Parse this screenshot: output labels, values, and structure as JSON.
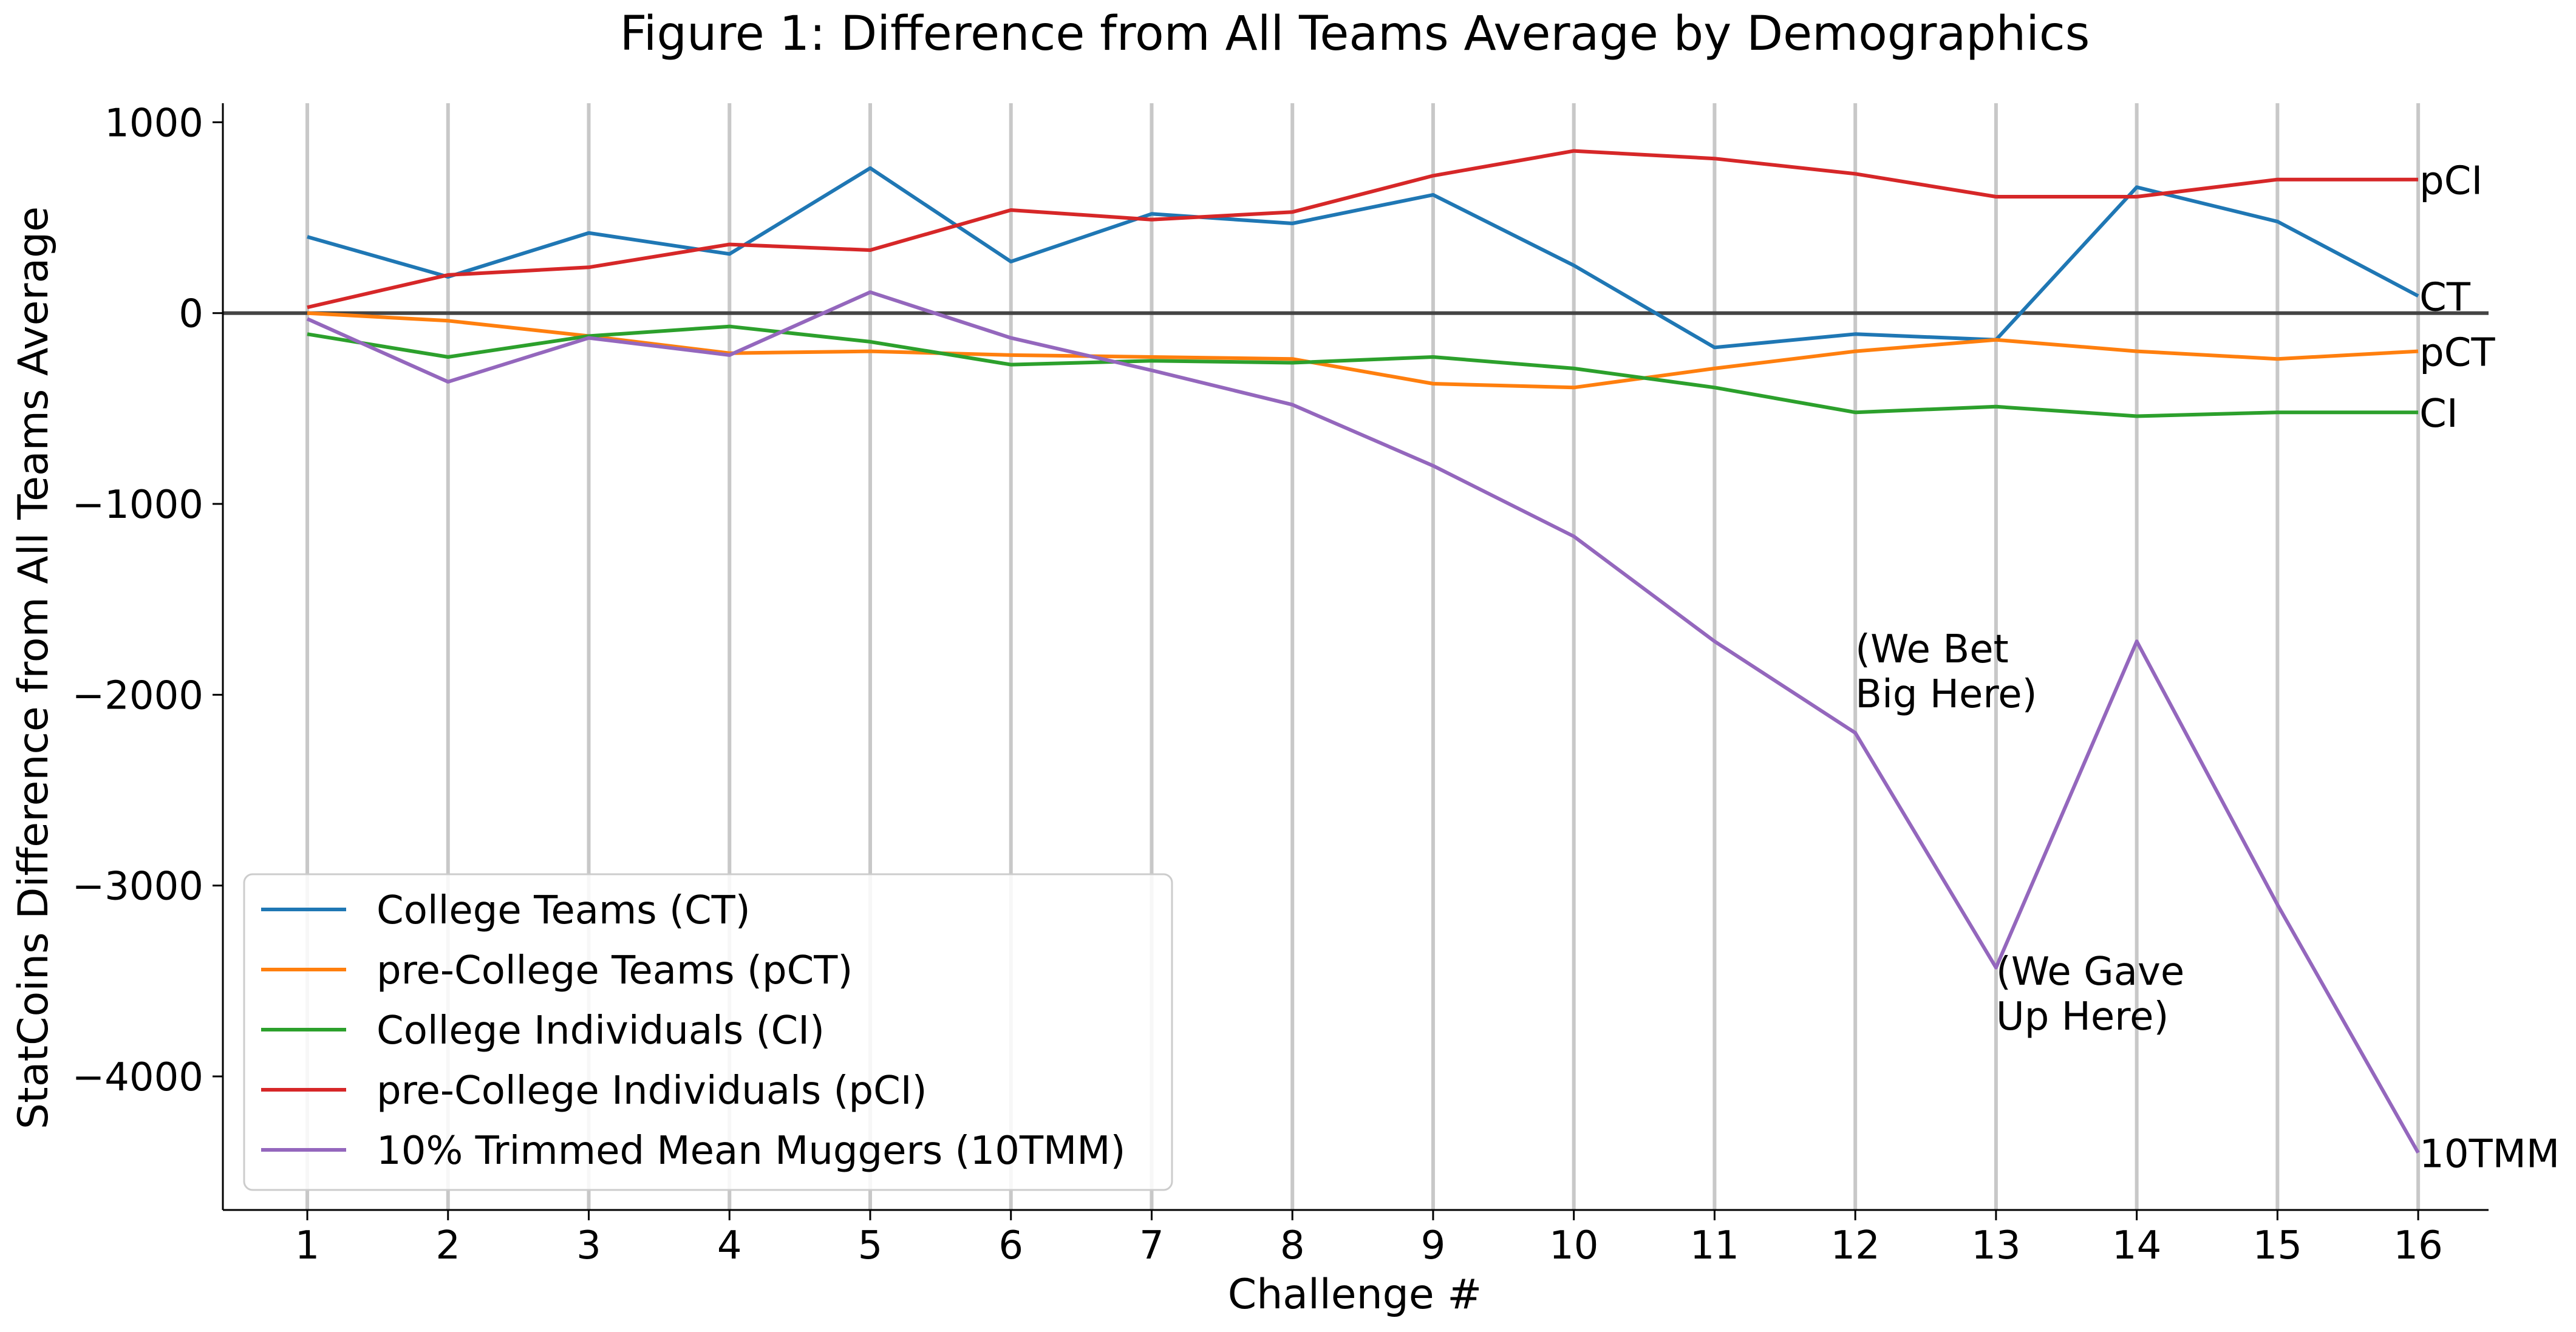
{
  "chart_data": {
    "type": "line",
    "title": "Figure 1: Difference from All Teams Average by Demographics",
    "xlabel": "Challenge #",
    "ylabel": "StatCoins Difference from All Teams Average",
    "x": [
      1,
      2,
      3,
      4,
      5,
      6,
      7,
      8,
      9,
      10,
      11,
      12,
      13,
      14,
      15,
      16
    ],
    "xlim": [
      0.4,
      16.5
    ],
    "ylim": [
      -4700,
      1100
    ],
    "yticks": [
      1000,
      0,
      -1000,
      -2000,
      -3000,
      -4000
    ],
    "ytick_labels": [
      "1000",
      "0",
      "−1000",
      "−2000",
      "−3000",
      "−4000"
    ],
    "vertical_grid": true,
    "horizontal_grid": false,
    "zero_line": {
      "y": 0,
      "color": "#444444"
    },
    "legend_position": "lower-left",
    "series": [
      {
        "name": "College Teams (CT)",
        "end_label": "CT",
        "color": "#1f77b4",
        "values": [
          400,
          190,
          420,
          310,
          760,
          270,
          520,
          470,
          620,
          250,
          -180,
          -110,
          -140,
          660,
          480,
          90
        ]
      },
      {
        "name": "pre-College Teams (pCT)",
        "end_label": "pCT",
        "color": "#ff7f0e",
        "values": [
          0,
          -40,
          -120,
          -210,
          -200,
          -220,
          -230,
          -240,
          -370,
          -390,
          -290,
          -200,
          -140,
          -200,
          -240,
          -200
        ]
      },
      {
        "name": "College Individuals (CI)",
        "end_label": "CI",
        "color": "#2ca02c",
        "values": [
          -110,
          -230,
          -120,
          -70,
          -150,
          -270,
          -250,
          -260,
          -230,
          -290,
          -390,
          -520,
          -490,
          -540,
          -520,
          -520
        ]
      },
      {
        "name": "pre-College Individuals (pCI)",
        "end_label": "pCI",
        "color": "#d62728",
        "values": [
          30,
          200,
          240,
          360,
          330,
          540,
          490,
          530,
          720,
          850,
          810,
          730,
          610,
          610,
          700,
          700
        ]
      },
      {
        "name": "10% Trimmed Mean Muggers (10TMM)",
        "end_label": "10TMM",
        "color": "#9467bd",
        "values": [
          -30,
          -360,
          -130,
          -220,
          110,
          -130,
          -300,
          -480,
          -800,
          -1170,
          -1720,
          -2200,
          -3430,
          -1720,
          -3100,
          -4400
        ]
      }
    ],
    "annotations": [
      {
        "text_lines": [
          "(We Bet",
          "Big Here)"
        ],
        "x": 12,
        "y": -1830
      },
      {
        "text_lines": [
          "(We Gave",
          "Up Here)"
        ],
        "x": 13,
        "y": -3520
      }
    ]
  }
}
